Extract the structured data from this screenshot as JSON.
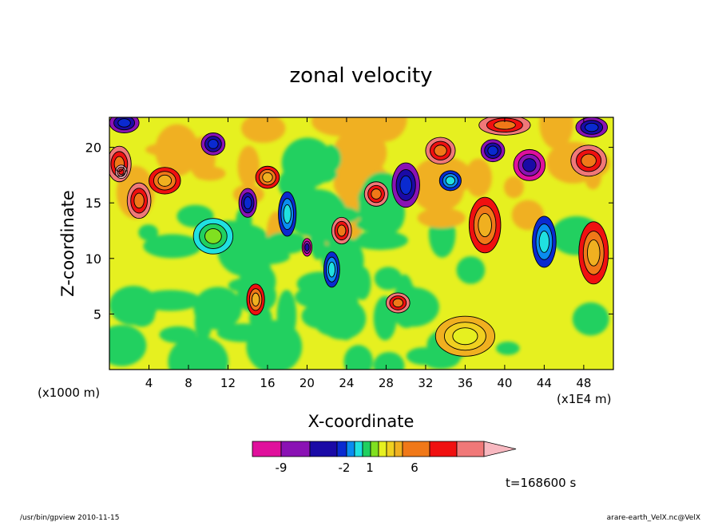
{
  "chart_data": {
    "type": "heatmap",
    "title": "zonal velocity",
    "xlabel": "X-coordinate",
    "ylabel": "Z-coordinate",
    "x_unit_note": "(x1E4 m)",
    "y_unit_note": "(x1000 m)",
    "x_ticks": [
      4,
      8,
      12,
      16,
      20,
      24,
      28,
      32,
      36,
      40,
      44,
      48
    ],
    "y_ticks": [
      5,
      10,
      15,
      20
    ],
    "xlim": [
      0,
      51
    ],
    "ylim": [
      0,
      22.7
    ],
    "grid": false,
    "colorbar": {
      "colors": [
        "#e0109c",
        "#8a12b4",
        "#1a0aa6",
        "#0a2ad0",
        "#0a8cf0",
        "#20e0e0",
        "#20d060",
        "#80e020",
        "#e6f020",
        "#f0d020",
        "#f0b020",
        "#f07818",
        "#f01010",
        "#f07878",
        "#f8b8c0"
      ],
      "labels": [
        "-9",
        "-2",
        "1",
        "6"
      ],
      "extend": "max"
    },
    "regions": [
      {
        "x": 1.5,
        "z": 22.2,
        "rx": 1.5,
        "rz": 0.9,
        "level": 3
      },
      {
        "x": 1.0,
        "z": 18.5,
        "rx": 1.2,
        "rz": 1.6,
        "level": 11
      },
      {
        "x": 1.2,
        "z": 17.8,
        "rx": 0.6,
        "rz": 0.6,
        "level": 12
      },
      {
        "x": 3.0,
        "z": 15.2,
        "rx": 1.2,
        "rz": 1.6,
        "level": 11
      },
      {
        "x": 5.6,
        "z": 17.0,
        "rx": 1.6,
        "rz": 1.2,
        "level": 10
      },
      {
        "x": 10.5,
        "z": 20.3,
        "rx": 1.2,
        "rz": 1.0,
        "level": 3
      },
      {
        "x": 14.0,
        "z": 15.0,
        "rx": 0.9,
        "rz": 1.3,
        "level": 3
      },
      {
        "x": 16.0,
        "z": 17.3,
        "rx": 1.2,
        "rz": 1.0,
        "level": 10
      },
      {
        "x": 18.0,
        "z": 14.0,
        "rx": 0.9,
        "rz": 2.0,
        "level": 5
      },
      {
        "x": 20.0,
        "z": 11.0,
        "rx": 0.5,
        "rz": 0.8,
        "level": 2
      },
      {
        "x": 22.5,
        "z": 9.0,
        "rx": 0.8,
        "rz": 1.6,
        "level": 5
      },
      {
        "x": 23.5,
        "z": 12.5,
        "rx": 1.0,
        "rz": 1.2,
        "level": 11
      },
      {
        "x": 27.0,
        "z": 15.8,
        "rx": 1.2,
        "rz": 1.1,
        "level": 11
      },
      {
        "x": 30.0,
        "z": 16.6,
        "rx": 1.4,
        "rz": 2.0,
        "level": 3
      },
      {
        "x": 29.2,
        "z": 6.0,
        "rx": 1.2,
        "rz": 0.9,
        "level": 11
      },
      {
        "x": 33.5,
        "z": 19.7,
        "rx": 1.5,
        "rz": 1.2,
        "level": 11
      },
      {
        "x": 34.5,
        "z": 17.0,
        "rx": 1.1,
        "rz": 0.9,
        "level": 5
      },
      {
        "x": 38.8,
        "z": 19.7,
        "rx": 1.2,
        "rz": 1.0,
        "level": 3
      },
      {
        "x": 42.5,
        "z": 18.4,
        "rx": 1.6,
        "rz": 1.4,
        "level": 2
      },
      {
        "x": 40.0,
        "z": 22.0,
        "rx": 2.6,
        "rz": 0.9,
        "level": 11
      },
      {
        "x": 48.5,
        "z": 18.8,
        "rx": 1.8,
        "rz": 1.4,
        "level": 11
      },
      {
        "x": 48.8,
        "z": 21.8,
        "rx": 1.6,
        "rz": 0.9,
        "level": 3
      },
      {
        "x": 44.0,
        "z": 11.5,
        "rx": 1.2,
        "rz": 2.3,
        "level": 5
      },
      {
        "x": 49.0,
        "z": 10.5,
        "rx": 1.5,
        "rz": 2.8,
        "level": 10
      },
      {
        "x": 38.0,
        "z": 13.0,
        "rx": 1.6,
        "rz": 2.5,
        "level": 10
      },
      {
        "x": 14.8,
        "z": 6.3,
        "rx": 0.9,
        "rz": 1.4,
        "level": 10
      },
      {
        "x": 10.5,
        "z": 12.0,
        "rx": 2.0,
        "rz": 1.6,
        "level": 7
      },
      {
        "x": 36.0,
        "z": 3.0,
        "rx": 3.0,
        "rz": 1.8,
        "level": 8
      }
    ]
  },
  "timestamp_label": "t=168600 s",
  "footer_left": "/usr/bin/gpview  2010-11-15",
  "footer_right": "arare-earth_VelX.nc@VelX"
}
